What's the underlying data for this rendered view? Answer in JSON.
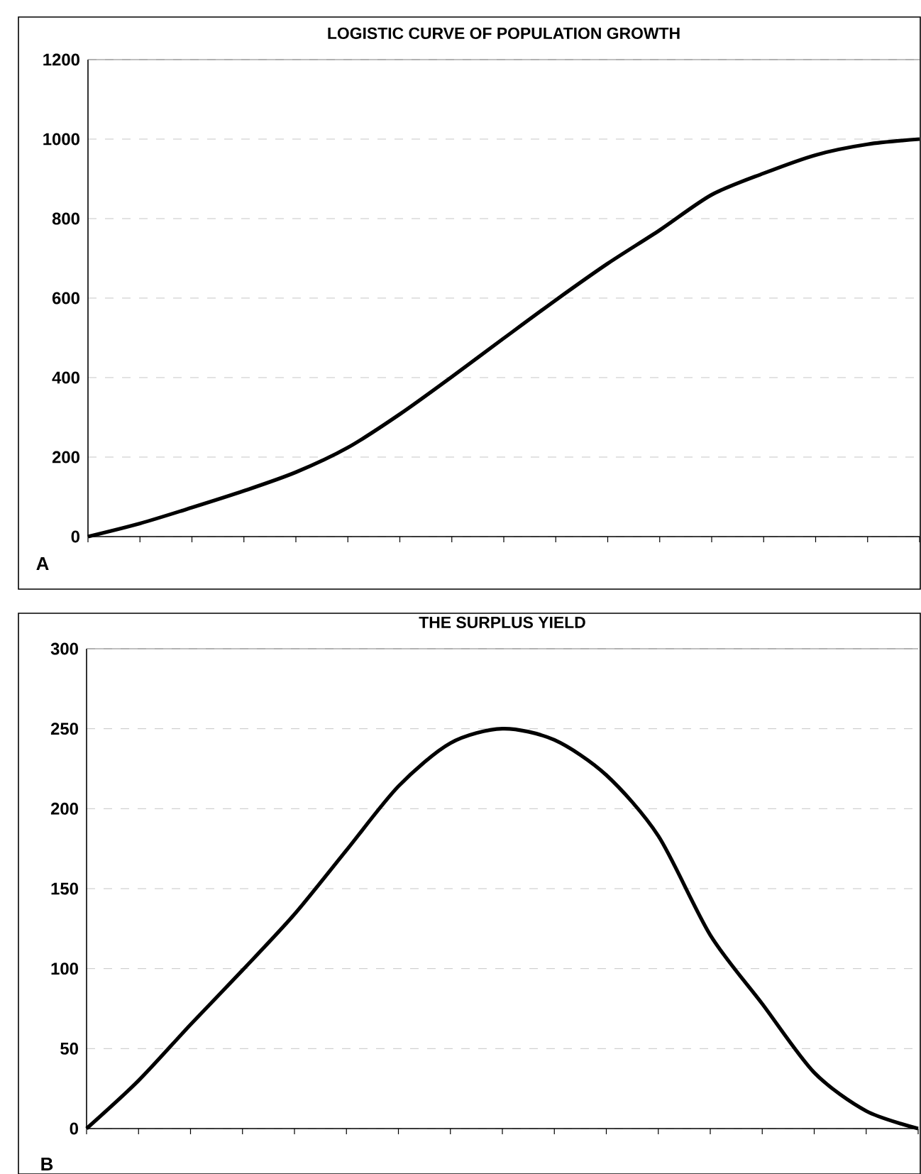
{
  "chart_data": [
    {
      "type": "line",
      "title": "LOGISTIC CURVE OF POPULATION GROWTH",
      "annotations": [
        "A"
      ],
      "categories": [
        null,
        null,
        null,
        null,
        null,
        null,
        null,
        null,
        null,
        null,
        null,
        null,
        null,
        null,
        null,
        null,
        null
      ],
      "series": [
        {
          "color": "#000000",
          "values": [
            0,
            33,
            73,
            115,
            162,
            224,
            308,
            402,
            499,
            595,
            687,
            771,
            860,
            914,
            960,
            987,
            1000
          ]
        }
      ],
      "ylim": [
        0,
        1200
      ],
      "yticks": [
        0,
        200,
        400,
        600,
        800,
        1000,
        1200
      ],
      "grid": "y",
      "marker": "none",
      "line_style": "solid",
      "tick_labels": "y"
    },
    {
      "type": "line",
      "title": "THE SURPLUS YIELD",
      "annotations": [
        "B"
      ],
      "categories": [
        null,
        null,
        null,
        null,
        null,
        null,
        null,
        null,
        null,
        null,
        null,
        null,
        null,
        null,
        null,
        null,
        null
      ],
      "series": [
        {
          "color": "#000000",
          "values": [
            0,
            30,
            65,
            99,
            134,
            174,
            214,
            241,
            250,
            243,
            221,
            183,
            121,
            78,
            35,
            11,
            0
          ]
        }
      ],
      "ylim": [
        0,
        300
      ],
      "yticks": [
        0,
        50,
        100,
        150,
        200,
        250,
        300
      ],
      "grid": "y",
      "marker": "none",
      "line_style": "solid",
      "tick_labels": "y"
    }
  ]
}
